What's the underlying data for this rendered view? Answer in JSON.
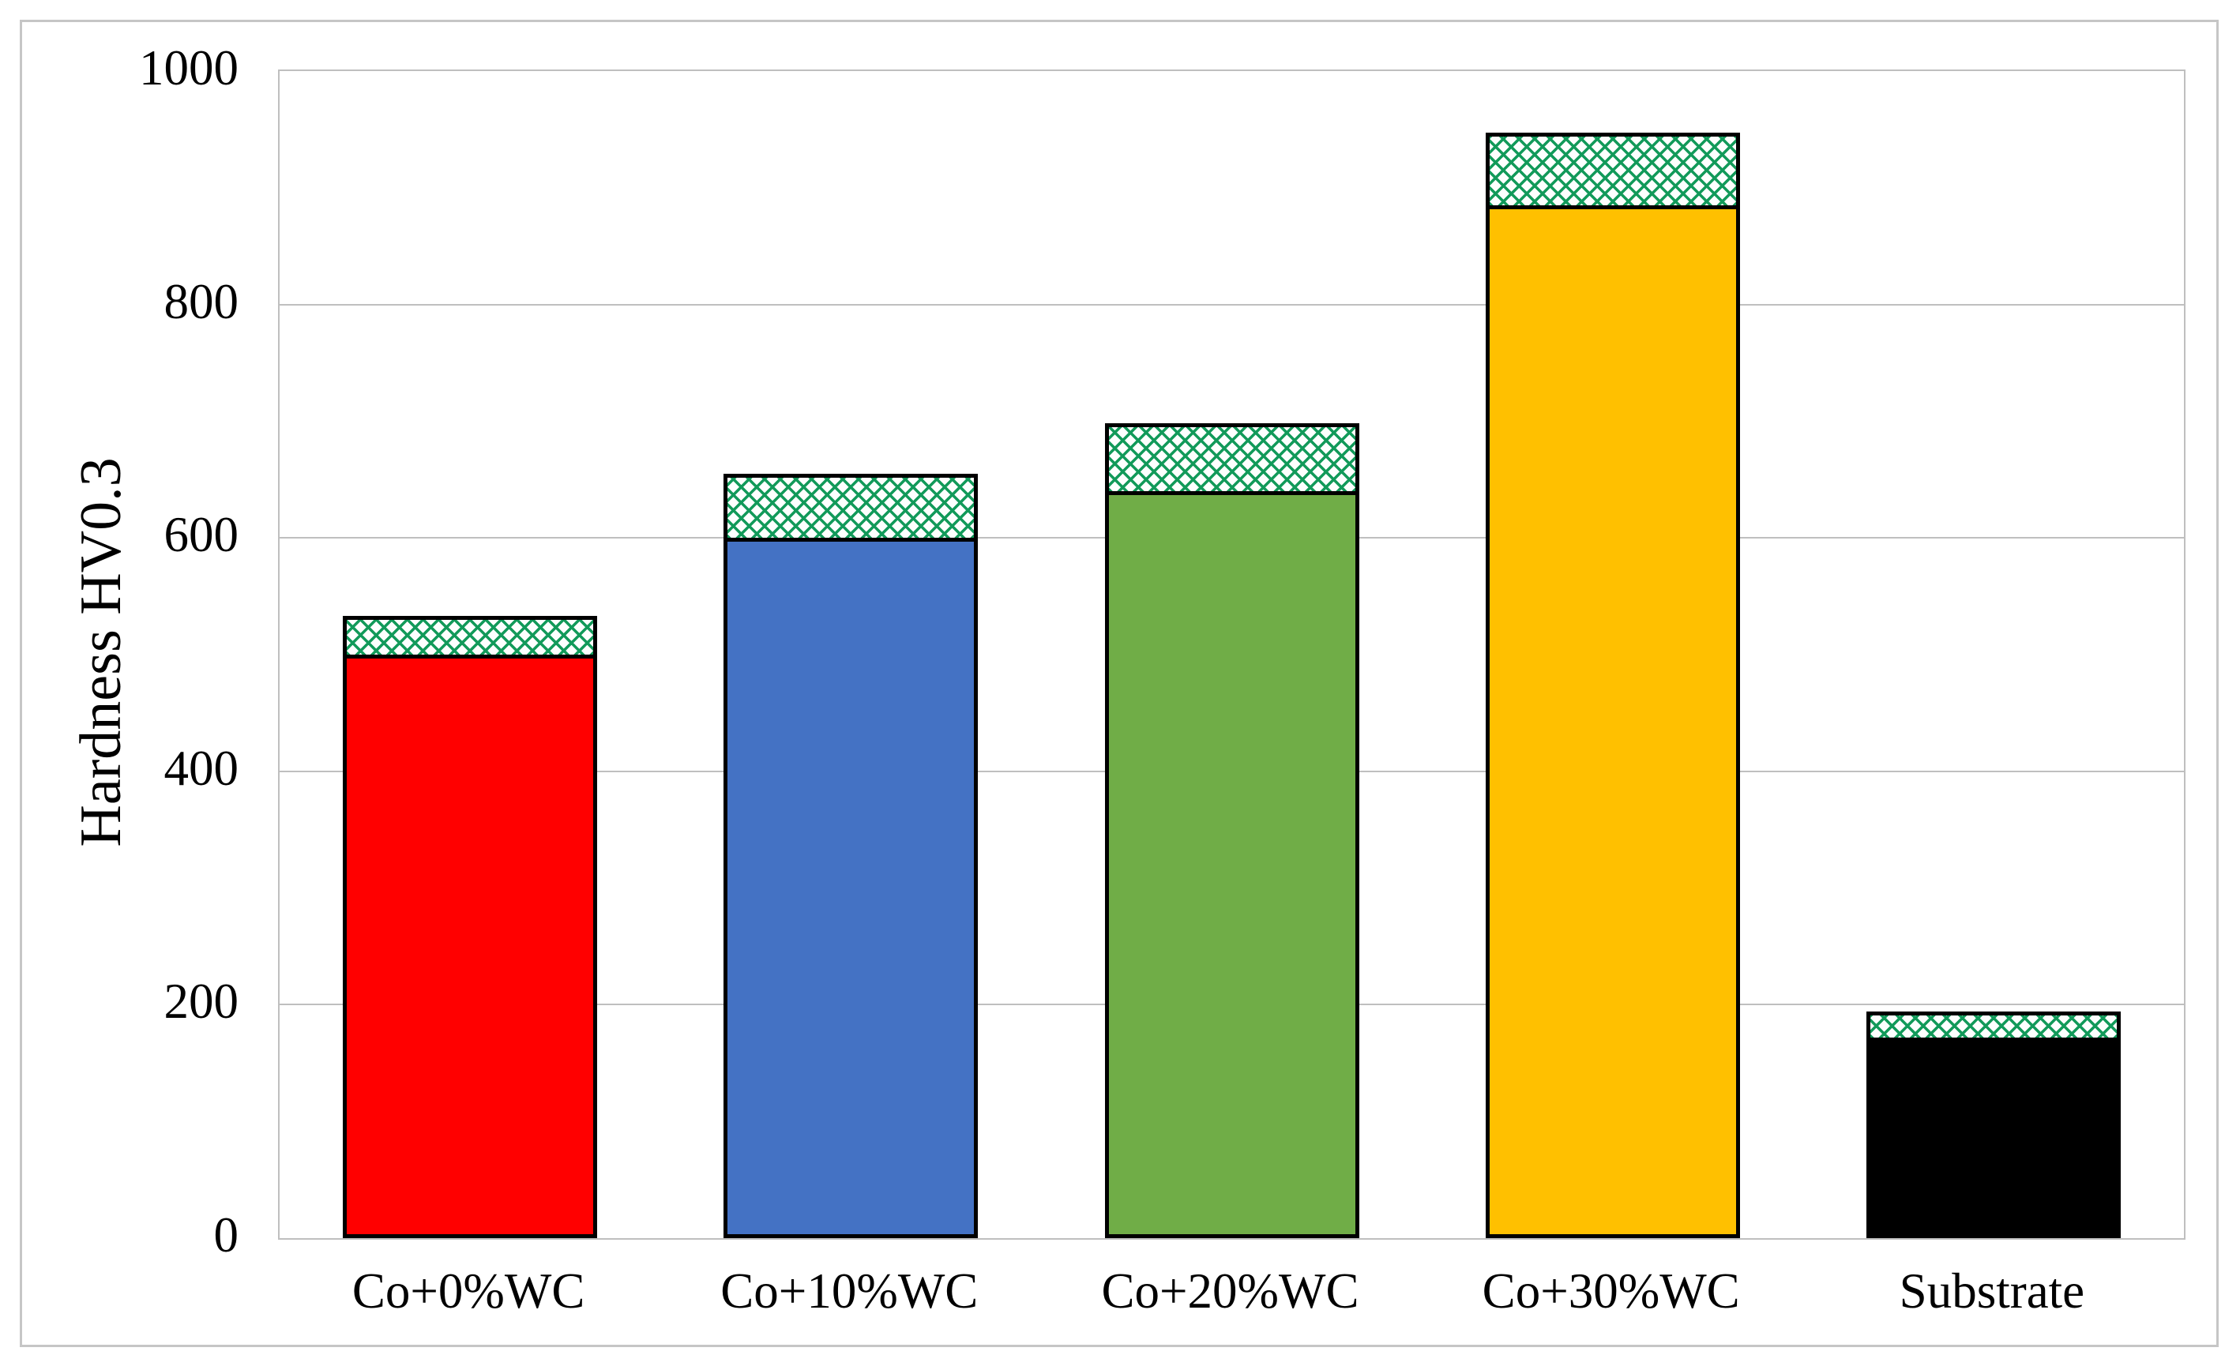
{
  "chart_data": {
    "type": "bar",
    "title": "",
    "xlabel": "",
    "ylabel": "Hardness HV0.3",
    "categories": [
      "Co+0%WC",
      "Co+10%WC",
      "Co+20%WC",
      "Co+30%WC",
      "Substrate"
    ],
    "series": [
      {
        "name": "solid-fill-hardness",
        "description": "top of solid colored portion of each bar",
        "values": [
          500,
          600,
          640,
          885,
          172
        ]
      },
      {
        "name": "crosshatched-cap-top",
        "description": "absolute top of the green cross-hatched cap segment of each bar",
        "values": [
          533,
          655,
          698,
          947,
          194
        ]
      }
    ],
    "bar_colors": [
      "#FF0000",
      "#4472C4",
      "#70AD47",
      "#FFC000",
      "#000000"
    ],
    "bar_border_color": "#000000",
    "hatch": {
      "style": "diagonal-crosshatch",
      "color": "#129A5A",
      "background": "#FDFFFE"
    },
    "ylim": [
      0,
      1000
    ],
    "yticks": [
      0,
      200,
      400,
      600,
      800,
      1000
    ],
    "grid": true,
    "gridline_color": "#BFBFBF",
    "legend_position": "none"
  }
}
